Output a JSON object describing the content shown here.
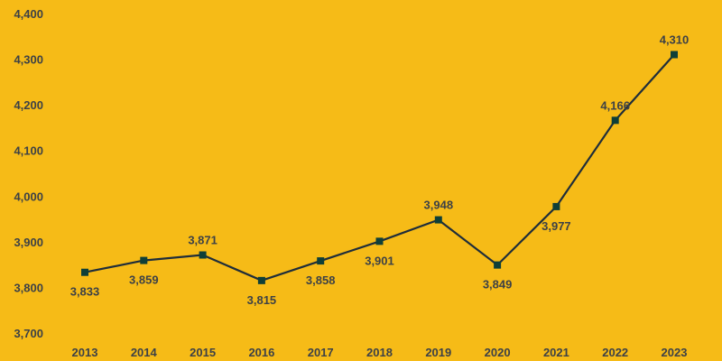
{
  "theme": {
    "background": "#f6bb17",
    "line_color": "#1f2d3a",
    "marker_color": "#0f3f38",
    "text_color": "#3d4146"
  },
  "chart_data": {
    "type": "line",
    "title": "",
    "xlabel": "",
    "ylabel": "",
    "categories": [
      "2013",
      "2014",
      "2015",
      "2016",
      "2017",
      "2018",
      "2019",
      "2020",
      "2021",
      "2022",
      "2023"
    ],
    "series": [
      {
        "values": [
          3833,
          3859,
          3871,
          3815,
          3858,
          3901,
          3948,
          3849,
          3977,
          4166,
          4310
        ],
        "labels": [
          "3,833",
          "3,859",
          "3,871",
          "3,815",
          "3,858",
          "3,901",
          "3,948",
          "3,849",
          "3,977",
          "4,166",
          "4,310"
        ],
        "marker": "square"
      }
    ],
    "ylim": [
      3700,
      4400
    ],
    "y_ticks": [
      3700,
      3800,
      3900,
      4000,
      4100,
      4200,
      4300,
      4400
    ],
    "y_tick_labels": [
      "3,700",
      "3,800",
      "3,900",
      "4,000",
      "4,100",
      "4,200",
      "4,300",
      "4,400"
    ],
    "grid": false,
    "legend": "none"
  }
}
